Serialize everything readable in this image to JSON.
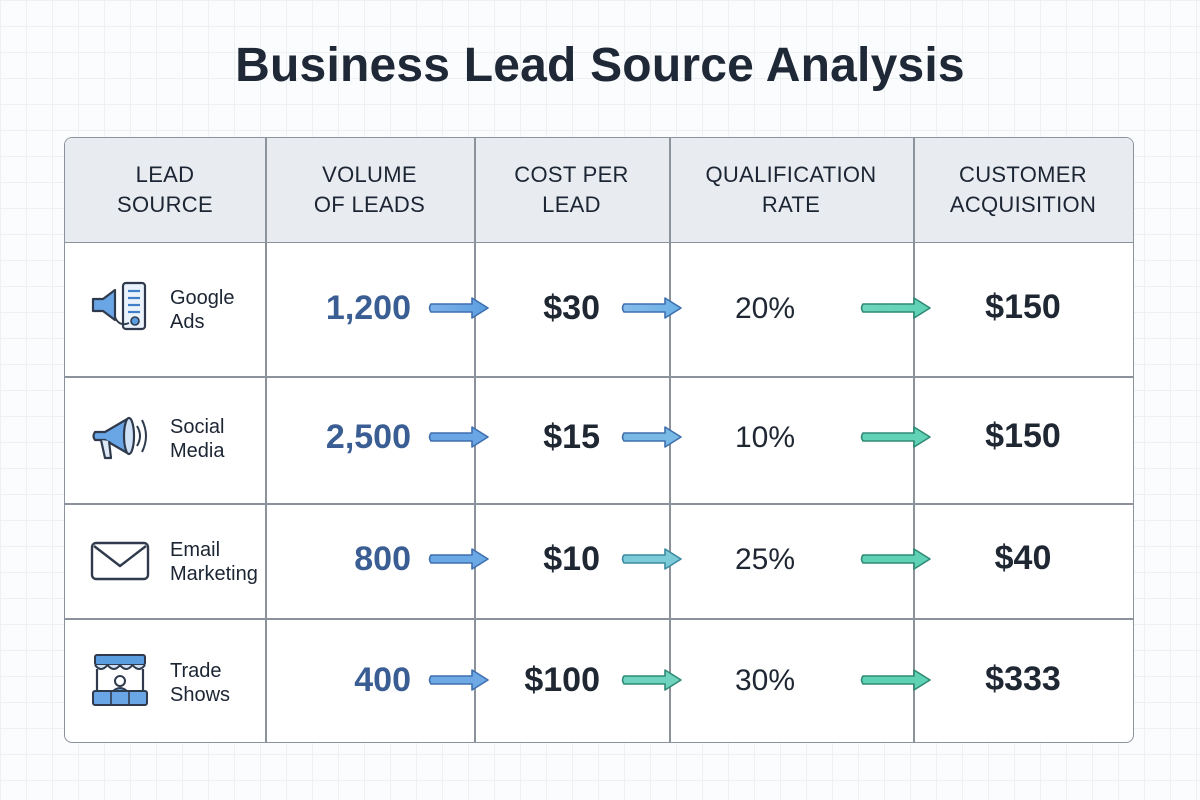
{
  "title": "Business Lead Source Analysis",
  "headers": {
    "lead_source": [
      "LEAD",
      "SOURCE"
    ],
    "volume": [
      "VOLUME",
      "OF LEADS"
    ],
    "cost": [
      "COST PER",
      "LEAD"
    ],
    "qualification": [
      "QUALIFICATION",
      "RATE"
    ],
    "acquisition": [
      "CUSTOMER",
      "ACQUISITION"
    ]
  },
  "rows": [
    {
      "source": [
        "Google",
        "Ads"
      ],
      "icon": "google-ads-icon",
      "volume": "1,200",
      "cost": "$30",
      "qualification": "20%",
      "acquisition": "$150"
    },
    {
      "source": [
        "Social",
        "Media"
      ],
      "icon": "megaphone-icon",
      "volume": "2,500",
      "cost": "$15",
      "qualification": "10%",
      "acquisition": "$150"
    },
    {
      "source": [
        "Email",
        "Marketing"
      ],
      "icon": "envelope-icon",
      "volume": "800",
      "cost": "$10",
      "qualification": "25%",
      "acquisition": "$40"
    },
    {
      "source": [
        "Trade",
        "Shows"
      ],
      "icon": "booth-icon",
      "volume": "400",
      "cost": "$100",
      "qualification": "30%",
      "acquisition": "$333"
    }
  ],
  "chart_data": {
    "type": "table",
    "title": "Business Lead Source Analysis",
    "columns": [
      "LEAD SOURCE",
      "VOLUME OF LEADS",
      "COST PER LEAD",
      "QUALIFICATION RATE",
      "CUSTOMER ACQUISITION"
    ],
    "rows": [
      [
        "Google Ads",
        1200,
        30,
        20,
        150
      ],
      [
        "Social Media",
        2500,
        15,
        10,
        150
      ],
      [
        "Email Marketing",
        800,
        10,
        25,
        40
      ],
      [
        "Trade Shows",
        400,
        100,
        30,
        333
      ]
    ],
    "colors": {
      "volume": "#3a5d93",
      "arrow_blue": "#6aa6e6",
      "arrow_teal": "#5fd1b5"
    }
  }
}
